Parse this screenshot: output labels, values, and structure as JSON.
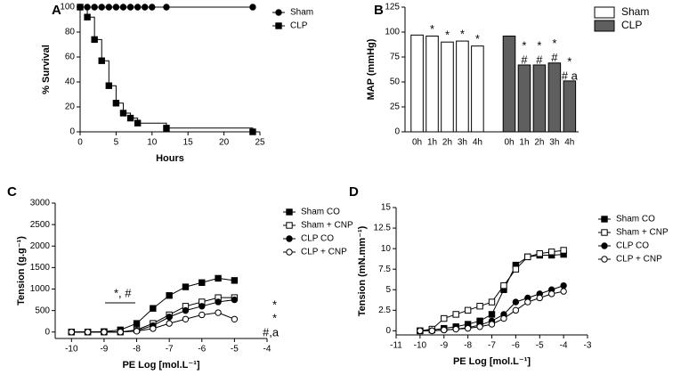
{
  "chart_data": [
    {
      "type": "line",
      "panel": "A",
      "step": true,
      "xlabel": "Hours",
      "ylabel": "% Survival",
      "xlim": [
        0,
        25
      ],
      "xticks": [
        0,
        5,
        10,
        15,
        20,
        25
      ],
      "ylim": [
        0,
        100
      ],
      "yticks": [
        0,
        20,
        40,
        60,
        80,
        100
      ],
      "legend": "right",
      "series": [
        {
          "name": "Sham",
          "color": "#000",
          "marker": "circle",
          "fill": "#000",
          "x": [
            0,
            1,
            2,
            3,
            4,
            5,
            6,
            7,
            8,
            9,
            10,
            12,
            24
          ],
          "values": [
            100,
            100,
            100,
            100,
            100,
            100,
            100,
            100,
            100,
            100,
            100,
            100,
            100
          ]
        },
        {
          "name": "CLP",
          "color": "#000",
          "marker": "square",
          "fill": "#000",
          "x": [
            0,
            1,
            2,
            3,
            4,
            5,
            6,
            7,
            8,
            12,
            24
          ],
          "values": [
            100,
            92,
            74,
            57,
            37,
            23,
            15,
            11,
            7,
            3,
            0
          ]
        }
      ]
    },
    {
      "type": "bar",
      "panel": "B",
      "ylabel": "MAP (mmHg)",
      "categories": [
        "0h",
        "1h",
        "2h",
        "3h",
        "4h"
      ],
      "ylim": [
        0,
        125
      ],
      "yticks": [
        0,
        25,
        50,
        75,
        100,
        125
      ],
      "legend": "right",
      "series": [
        {
          "name": "Sham",
          "color": "#ffffff",
          "values": [
            97,
            96,
            90,
            91,
            86
          ],
          "annotations": [
            null,
            [
              "*"
            ],
            [
              "*"
            ],
            [
              "*"
            ],
            [
              "*"
            ]
          ]
        },
        {
          "name": "CLP",
          "color": "#5f5f5f",
          "values": [
            96,
            67,
            67,
            69,
            51
          ],
          "annotations": [
            null,
            [
              "*",
              "#"
            ],
            [
              "*",
              "#"
            ],
            [
              "*",
              "#"
            ],
            [
              "*",
              "# a"
            ]
          ]
        }
      ]
    },
    {
      "type": "line",
      "panel": "C",
      "xlabel": "PE Log [mol.L⁻¹]",
      "ylabel": "Tension (g.g⁻¹)",
      "xlim": [
        -10.5,
        -4
      ],
      "xticks": [
        -10,
        -9,
        -8,
        -7,
        -6,
        -5,
        -4
      ],
      "ylim": [
        -150,
        3000
      ],
      "yticks": [
        0,
        500,
        1000,
        1500,
        2000,
        2500,
        3000
      ],
      "legend": "right",
      "annotations": [
        "*, #",
        "*",
        "*",
        "#,a"
      ],
      "series": [
        {
          "name": "Sham CO",
          "color": "#000",
          "marker": "square",
          "fill": "#000",
          "x": [
            -10,
            -9.5,
            -9,
            -8.5,
            -8,
            -7.5,
            -7,
            -6.5,
            -6,
            -5.5,
            -5
          ],
          "values": [
            0,
            0,
            10,
            50,
            200,
            550,
            850,
            1050,
            1150,
            1250,
            1200
          ]
        },
        {
          "name": "Sham + CNP",
          "color": "#000",
          "marker": "square",
          "fill": "#fff",
          "x": [
            -10,
            -9.5,
            -9,
            -8.5,
            -8,
            -7.5,
            -7,
            -6.5,
            -6,
            -5.5,
            -5
          ],
          "values": [
            0,
            0,
            0,
            0,
            50,
            200,
            400,
            600,
            700,
            800,
            800
          ]
        },
        {
          "name": "CLP CO",
          "color": "#000",
          "marker": "circle",
          "fill": "#000",
          "x": [
            -10,
            -9.5,
            -9,
            -8.5,
            -8,
            -7.5,
            -7,
            -6.5,
            -6,
            -5.5,
            -5
          ],
          "values": [
            0,
            0,
            0,
            0,
            30,
            150,
            350,
            500,
            600,
            700,
            750
          ]
        },
        {
          "name": "CLP + CNP",
          "color": "#000",
          "marker": "circle",
          "fill": "#fff",
          "x": [
            -10,
            -9.5,
            -9,
            -8.5,
            -8,
            -7.5,
            -7,
            -6.5,
            -6,
            -5.5,
            -5
          ],
          "values": [
            0,
            0,
            0,
            0,
            20,
            80,
            200,
            300,
            400,
            450,
            300
          ]
        }
      ]
    },
    {
      "type": "line",
      "panel": "D",
      "xlabel": "PE Log [mol.L⁻¹]",
      "ylabel": "Tension (mN.mm⁻¹)",
      "xlim": [
        -11,
        -3
      ],
      "xticks": [
        -11,
        -10,
        -9,
        -8,
        -7,
        -6,
        -5,
        -4,
        -3
      ],
      "ylim": [
        -0.5,
        15
      ],
      "yticks": [
        0,
        2.5,
        5,
        7.5,
        10,
        12.5,
        15
      ],
      "legend": "right",
      "annotations": [
        "* **"
      ],
      "series": [
        {
          "name": "Sham CO",
          "color": "#000",
          "marker": "square",
          "fill": "#000",
          "x": [
            -10,
            -9.5,
            -9,
            -8.5,
            -8,
            -7.5,
            -7,
            -6.5,
            -6,
            -5.5,
            -5,
            -4.5,
            -4
          ],
          "values": [
            0,
            0.1,
            0.3,
            0.5,
            0.8,
            1.2,
            2,
            5,
            8,
            9,
            9.2,
            9.2,
            9.3
          ]
        },
        {
          "name": "Sham + CNP",
          "color": "#000",
          "marker": "square",
          "fill": "#fff",
          "x": [
            -10,
            -9.5,
            -9,
            -8.5,
            -8,
            -7.5,
            -7,
            -6.5,
            -6,
            -5.5,
            -5,
            -4.5,
            -4
          ],
          "values": [
            0,
            0.2,
            1.5,
            2,
            2.5,
            3,
            3.5,
            5.5,
            7.5,
            9,
            9.4,
            9.6,
            9.8
          ]
        },
        {
          "name": "CLP CO",
          "color": "#000",
          "marker": "circle",
          "fill": "#000",
          "x": [
            -10,
            -9.5,
            -9,
            -8.5,
            -8,
            -7.5,
            -7,
            -6.5,
            -6,
            -5.5,
            -5,
            -4.5,
            -4
          ],
          "values": [
            0,
            0,
            0.1,
            0.2,
            0.4,
            0.7,
            1.2,
            2,
            3.5,
            4,
            4.5,
            5,
            5.5
          ]
        },
        {
          "name": "CLP + CNP",
          "color": "#000",
          "marker": "circle",
          "fill": "#fff",
          "x": [
            -10,
            -9.5,
            -9,
            -8.5,
            -8,
            -7.5,
            -7,
            -6.5,
            -6,
            -5.5,
            -5,
            -4.5,
            -4
          ],
          "values": [
            0,
            0,
            0.1,
            0.2,
            0.3,
            0.5,
            0.8,
            1.5,
            2.5,
            3.5,
            4,
            4.5,
            4.8
          ]
        }
      ]
    }
  ]
}
